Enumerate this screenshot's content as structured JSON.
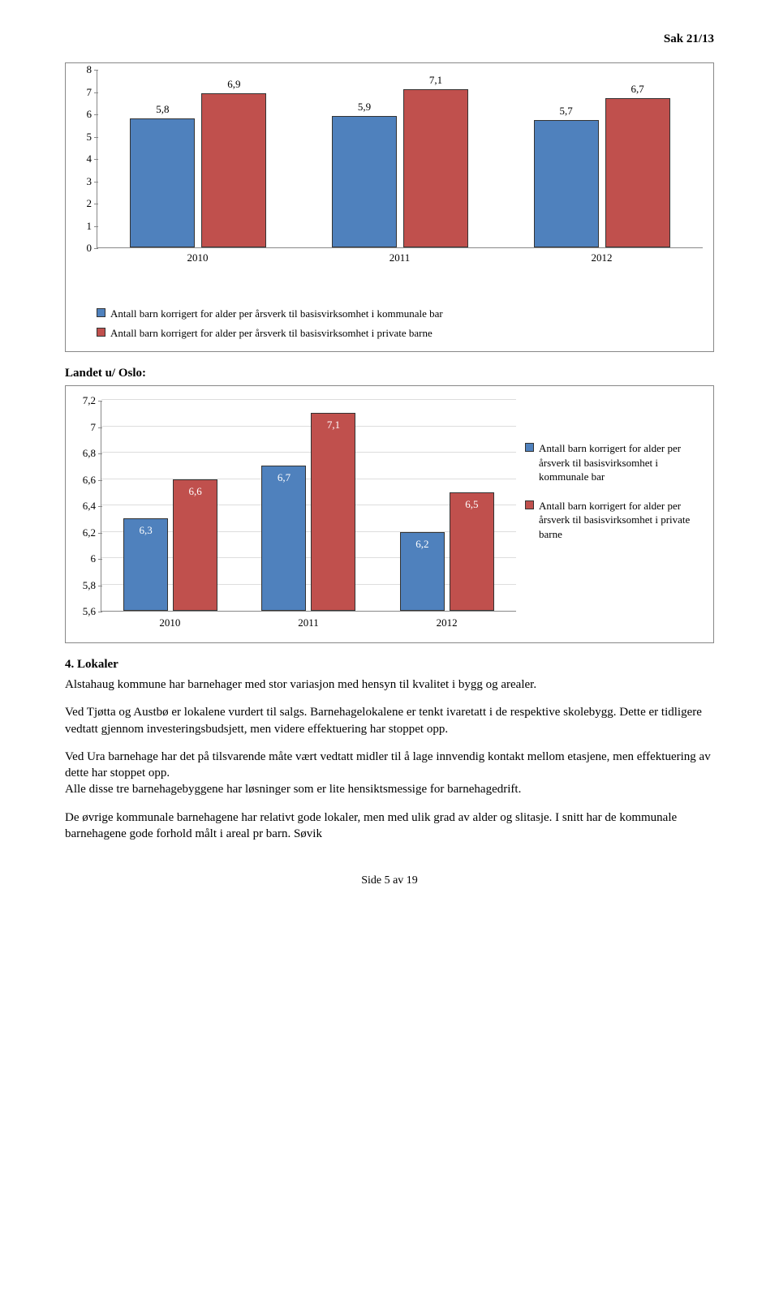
{
  "header": {
    "case_no": "Sak 21/13"
  },
  "chart1": {
    "type": "bar",
    "ylim": [
      0,
      8
    ],
    "ytick_step": 1,
    "categories": [
      "2010",
      "2011",
      "2012"
    ],
    "series_a_values": [
      5.8,
      5.9,
      5.7
    ],
    "series_b_values": [
      6.9,
      7.1,
      6.7
    ],
    "series_a_labels": [
      "5,8",
      "5,9",
      "5,7"
    ],
    "series_b_labels": [
      "6,9",
      "7,1",
      "6,7"
    ],
    "series_a_color": "#4f81bd",
    "series_b_color": "#c0504d",
    "border_color": "#333333",
    "legend_a": "Antall barn korrigert for alder per årsverk til basisvirksomhet i kommunale bar",
    "legend_b": "Antall barn korrigert for alder per årsverk til basisvirksomhet i private barne"
  },
  "subtitle": "Landet u/ Oslo:",
  "chart2": {
    "type": "bar",
    "ylim": [
      5.6,
      7.2
    ],
    "ytick_step": 0.2,
    "yticks_labels": [
      "5,6",
      "5,8",
      "6",
      "6,2",
      "6,4",
      "6,6",
      "6,8",
      "7",
      "7,2"
    ],
    "categories": [
      "2010",
      "2011",
      "2012"
    ],
    "series_a_values": [
      6.3,
      6.7,
      6.2
    ],
    "series_b_values": [
      6.6,
      7.1,
      6.5
    ],
    "series_a_labels": [
      "6,3",
      "6,7",
      "6,2"
    ],
    "series_b_labels": [
      "6,6",
      "7,1",
      "6,5"
    ],
    "series_a_color": "#4f81bd",
    "series_b_color": "#c0504d",
    "legend_a": "Antall barn korrigert for alder per årsverk til basisvirksomhet i kommunale bar",
    "legend_b": "Antall barn korrigert for alder per årsverk til basisvirksomhet i private barne"
  },
  "section4": {
    "title": "4. Lokaler",
    "p1": "Alstahaug kommune har barnehager med stor variasjon med hensyn til kvalitet i bygg og arealer.",
    "p2": "Ved Tjøtta og Austbø er lokalene vurdert til salgs. Barnehagelokalene er tenkt ivaretatt i de respektive skolebygg. Dette er tidligere vedtatt gjennom investeringsbudsjett, men videre effektuering har stoppet opp.",
    "p3": "Ved Ura barnehage har det på tilsvarende måte vært vedtatt midler til å lage innvendig kontakt mellom etasjene, men effektuering av dette har stoppet opp.",
    "p4": "Alle disse tre barnehagebyggene har løsninger som er lite hensiktsmessige for barnehagedrift.",
    "p5": "De øvrige kommunale barnehagene har relativt gode lokaler, men med ulik grad av alder og slitasje. I snitt har de kommunale barnehagene gode forhold målt i areal pr barn. Søvik"
  },
  "footer": {
    "page": "Side 5 av 19"
  }
}
